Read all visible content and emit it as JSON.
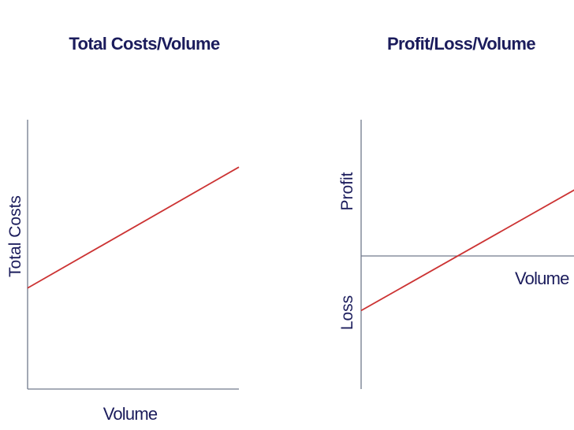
{
  "chart_data": [
    {
      "type": "line",
      "title": "Total Costs/Volume",
      "xlabel": "Volume",
      "ylabel": "Total Costs",
      "xlim": [
        0,
        1
      ],
      "ylim": [
        0,
        1
      ],
      "series": [
        {
          "x": [
            0,
            1
          ],
          "y": [
            0.375,
            0.824
          ],
          "color": "#cc3333"
        }
      ]
    },
    {
      "type": "line",
      "title": "Profit/Loss/Volume",
      "xlabel": "Volume",
      "ylabel_top": "Profit",
      "ylabel_bottom": "Loss",
      "xlim": [
        0,
        1
      ],
      "ylim": [
        -1,
        1
      ],
      "series": [
        {
          "x": [
            0,
            1
          ],
          "y": [
            -0.401,
            0.529
          ],
          "color": "#cc3333"
        }
      ]
    }
  ],
  "colors": {
    "title": "#1b1c5c",
    "axis": "#707a8c",
    "line": "#cc3333"
  }
}
